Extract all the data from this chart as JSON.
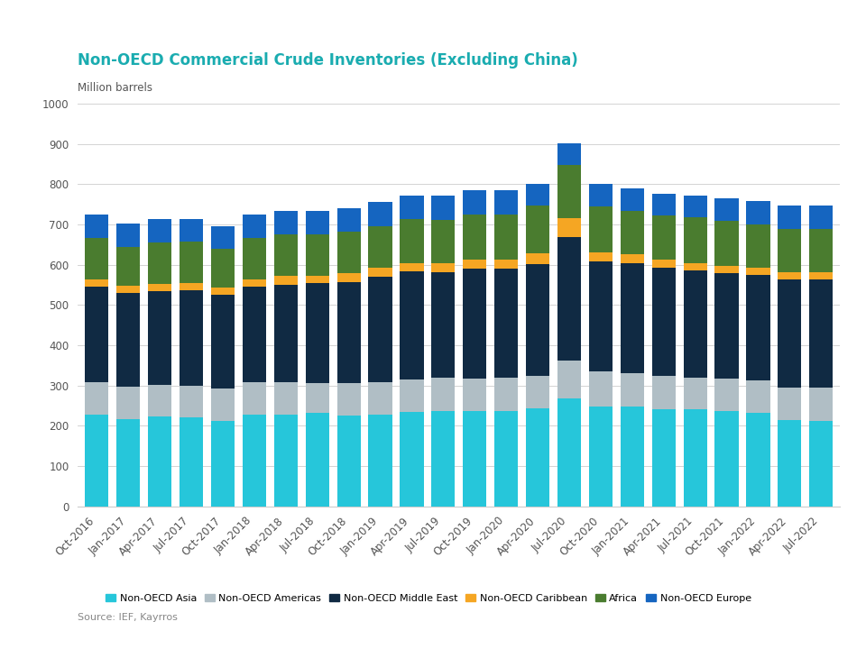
{
  "title": "Non-OECD Commercial Crude Inventories (Excluding China)",
  "ylabel": "Million barrels",
  "ylim": [
    0,
    1000
  ],
  "yticks": [
    0,
    100,
    200,
    300,
    400,
    500,
    600,
    700,
    800,
    900,
    1000
  ],
  "background_color": "#ffffff",
  "title_color": "#1aacb0",
  "source_text": "Source: IEF, Kayrros",
  "categories": [
    "Oct-2016",
    "Jan-2017",
    "Apr-2017",
    "Jul-2017",
    "Oct-2017",
    "Jan-2018",
    "Apr-2018",
    "Jul-2018",
    "Oct-2018",
    "Jan-2019",
    "Apr-2019",
    "Jul-2019",
    "Oct-2019",
    "Jan-2020",
    "Apr-2020",
    "Jul-2020",
    "Oct-2020",
    "Jan-2021",
    "Apr-2021",
    "Jul-2021",
    "Oct-2021",
    "Jan-2022",
    "Apr-2022",
    "Jul-2022"
  ],
  "series": {
    "Non-OECD Asia": [
      228,
      217,
      222,
      220,
      213,
      228,
      228,
      232,
      225,
      228,
      235,
      237,
      237,
      237,
      243,
      268,
      248,
      248,
      242,
      242,
      237,
      233,
      215,
      213
    ],
    "Non-OECD Americas": [
      80,
      80,
      80,
      80,
      80,
      80,
      80,
      75,
      80,
      80,
      80,
      82,
      80,
      82,
      82,
      95,
      88,
      83,
      83,
      78,
      80,
      80,
      80,
      82
    ],
    "Non-OECD Middle East": [
      238,
      232,
      232,
      237,
      232,
      237,
      242,
      248,
      253,
      263,
      268,
      263,
      273,
      272,
      277,
      305,
      273,
      273,
      267,
      267,
      262,
      262,
      268,
      268
    ],
    "Non-OECD Caribbean": [
      18,
      18,
      18,
      18,
      18,
      18,
      22,
      18,
      22,
      22,
      22,
      22,
      22,
      22,
      27,
      48,
      22,
      22,
      22,
      18,
      18,
      18,
      18,
      18
    ],
    "Africa": [
      103,
      97,
      103,
      103,
      97,
      103,
      103,
      103,
      103,
      103,
      108,
      108,
      113,
      113,
      118,
      133,
      113,
      108,
      108,
      113,
      113,
      108,
      108,
      108
    ],
    "Non-OECD Europe": [
      58,
      58,
      58,
      55,
      55,
      58,
      58,
      58,
      58,
      60,
      60,
      60,
      60,
      60,
      55,
      52,
      58,
      55,
      55,
      55,
      55,
      58,
      58,
      58
    ]
  },
  "colors": {
    "Non-OECD Asia": "#26c6da",
    "Non-OECD Americas": "#b0bec5",
    "Non-OECD Middle East": "#102a43",
    "Non-OECD Caribbean": "#f5a623",
    "Africa": "#4a7c2f",
    "Non-OECD Europe": "#1565c0"
  },
  "title_fontsize": 12,
  "axis_fontsize": 8.5,
  "legend_fontsize": 8
}
